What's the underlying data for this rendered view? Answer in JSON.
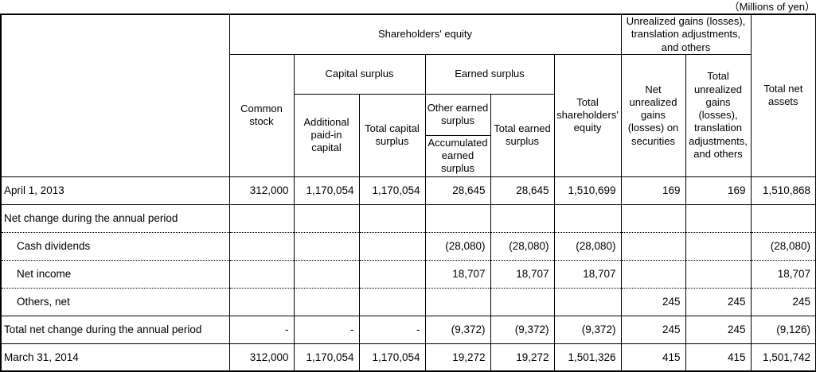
{
  "unit_note": "（Millions of yen）",
  "table": {
    "header": {
      "shareholders_equity": "Shareholders' equity",
      "unrealized_group": "Unrealized gains (losses), translation adjustments, and others",
      "total_net_assets": "Total net assets",
      "common_stock": "Common stock",
      "capital_surplus": "Capital surplus",
      "earned_surplus": "Earned surplus",
      "total_shareholders_equity": "Total shareholders' equity",
      "net_unrealized_gains_securities": "Net unrealized gains (losses) on securities",
      "total_unrealized_gains": "Total unrealized gains (losses), translation adjustments, and others",
      "additional_paid_in_capital": "Additional paid-in capital",
      "total_capital_surplus": "Total capital surplus",
      "other_earned_surplus": "Other earned surplus",
      "accumulated_earned_surplus": "Accumulated earned surplus",
      "total_earned_surplus": "Total earned surplus"
    },
    "rows": [
      {
        "label": "April 1, 2013",
        "indent": false,
        "separator": "solid",
        "values": [
          "312,000",
          "1,170,054",
          "1,170,054",
          "28,645",
          "28,645",
          "1,510,699",
          "169",
          "169",
          "1,510,868"
        ]
      },
      {
        "label": "Net change during the annual period",
        "indent": false,
        "separator": "solid",
        "values": [
          "",
          "",
          "",
          "",
          "",
          "",
          "",
          "",
          ""
        ]
      },
      {
        "label": "Cash dividends",
        "indent": true,
        "separator": "dotted",
        "values": [
          "",
          "",
          "",
          "(28,080)",
          "(28,080)",
          "(28,080)",
          "",
          "",
          "(28,080)"
        ]
      },
      {
        "label": "Net income",
        "indent": true,
        "separator": "dotted",
        "values": [
          "",
          "",
          "",
          "18,707",
          "18,707",
          "18,707",
          "",
          "",
          "18,707"
        ]
      },
      {
        "label": "Others, net",
        "indent": true,
        "separator": "dotted",
        "values": [
          "",
          "",
          "",
          "",
          "",
          "",
          "245",
          "245",
          "245"
        ]
      },
      {
        "label": "Total net change during the annual period",
        "indent": false,
        "separator": "solid",
        "values": [
          "-",
          "-",
          "-",
          "(9,372)",
          "(9,372)",
          "(9,372)",
          "245",
          "245",
          "(9,126)"
        ]
      },
      {
        "label": "March 31, 2014",
        "indent": false,
        "separator": "solid",
        "values": [
          "312,000",
          "1,170,054",
          "1,170,054",
          "19,272",
          "19,272",
          "1,501,326",
          "415",
          "415",
          "1,501,742"
        ]
      }
    ]
  }
}
